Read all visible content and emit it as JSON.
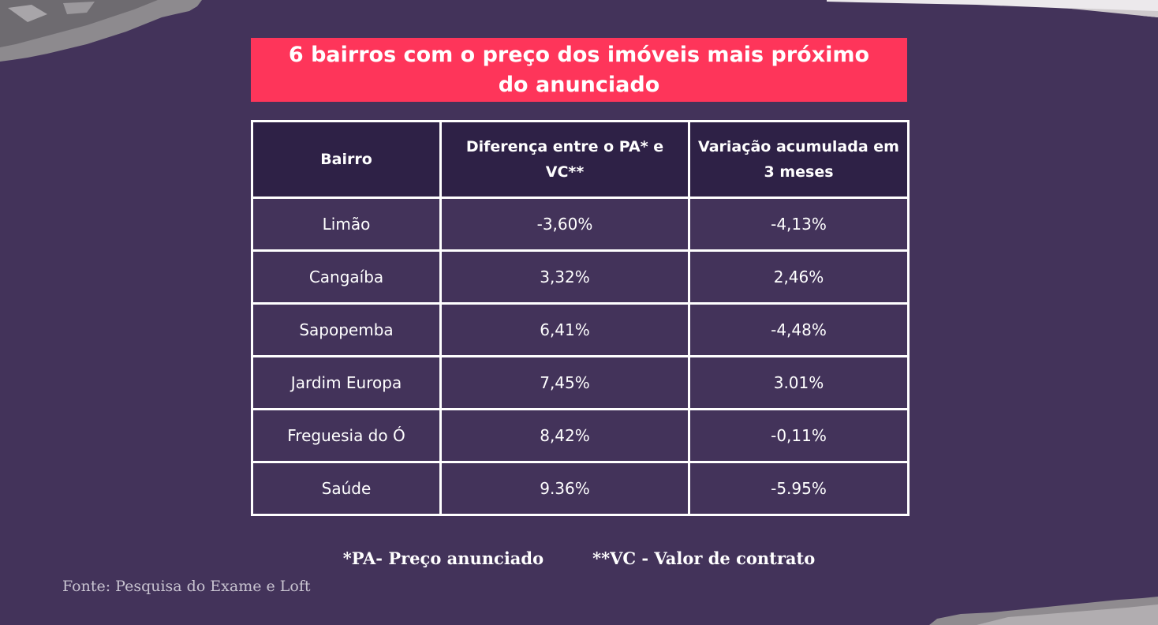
{
  "title": "6 bairros com o preço dos imóveis mais próximo do anunciado",
  "table": {
    "headers": [
      "Bairro",
      "Diferença entre o PA* e VC**",
      "Variação acumulada em 3 meses"
    ],
    "rows": [
      {
        "bairro": "Limão",
        "diferenca": "-3,60%",
        "variacao": "-4,13%"
      },
      {
        "bairro": "Cangaíba",
        "diferenca": "3,32%",
        "variacao": "2,46%"
      },
      {
        "bairro": "Sapopemba",
        "diferenca": "6,41%",
        "variacao": "-4,48%"
      },
      {
        "bairro": "Jardim Europa",
        "diferenca": "7,45%",
        "variacao": "3.01%"
      },
      {
        "bairro": "Freguesia do Ó",
        "diferenca": "8,42%",
        "variacao": "-0,11%"
      },
      {
        "bairro": "Saúde",
        "diferenca": "9.36%",
        "variacao": "-5.95%"
      }
    ]
  },
  "footnotes": {
    "pa": "*PA- Preço anunciado",
    "vc": "**VC - Valor de contrato"
  },
  "source": "Fonte: Pesquisa do Exame e Loft",
  "colors": {
    "background": "#43335a",
    "banner": "#fe355a",
    "header_fill": "#2e2146",
    "border": "#ffffff"
  }
}
